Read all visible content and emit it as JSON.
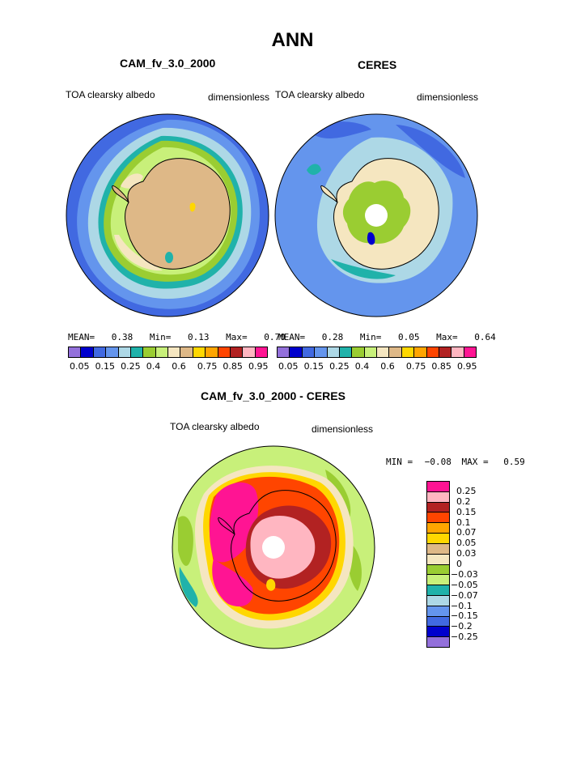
{
  "title": "ANN",
  "panels": [
    {
      "title": "CAM_fv_3.0_2000",
      "field": "TOA clearsky albedo",
      "units": "dimensionless",
      "stats": {
        "mean_label": "MEAN=",
        "mean": "0.38",
        "min_label": "Min=",
        "min": "0.13",
        "max_label": "Max=",
        "max": "0.70"
      }
    },
    {
      "title": "CERES",
      "field": "TOA clearsky albedo",
      "units": "dimensionless",
      "stats": {
        "mean_label": "MEAN=",
        "mean": "0.28",
        "min_label": "Min=",
        "min": "0.05",
        "max_label": "Max=",
        "max": "0.64"
      }
    }
  ],
  "colorbar_top": {
    "colors": [
      "#9370db",
      "#0000cd",
      "#4169e1",
      "#6495ed",
      "#add8e6",
      "#20b2aa",
      "#9acd32",
      "#c8f07a",
      "#f5e6c0",
      "#deb887",
      "#ffd700",
      "#ffa500",
      "#ff4500",
      "#b22222",
      "#ffb6c1",
      "#ff1493"
    ],
    "labels": [
      "0.05",
      "0.15",
      "0.25",
      "0.4",
      "0.6",
      "0.75",
      "0.85",
      "0.95"
    ]
  },
  "difference": {
    "title": "CAM_fv_3.0_2000 - CERES",
    "field": "TOA clearsky albedo",
    "units": "dimensionless",
    "stats": {
      "min_label": "MIN =",
      "min": "−0.08",
      "max_label": "MAX =",
      "max": "0.59"
    },
    "colorbar": {
      "colors": [
        "#ff1493",
        "#ffb6c1",
        "#b22222",
        "#ff4500",
        "#ffa500",
        "#ffd700",
        "#deb887",
        "#f5e6c0",
        "#9acd32",
        "#c8f07a",
        "#20b2aa",
        "#add8e6",
        "#6495ed",
        "#4169e1",
        "#0000cd",
        "#9370db"
      ],
      "labels": [
        "0.25",
        "0.2",
        "0.15",
        "0.1",
        "0.07",
        "0.05",
        "0.03",
        "0",
        "−0.03",
        "−0.05",
        "−0.07",
        "−0.1",
        "−0.15",
        "−0.2",
        "−0.25"
      ]
    }
  }
}
